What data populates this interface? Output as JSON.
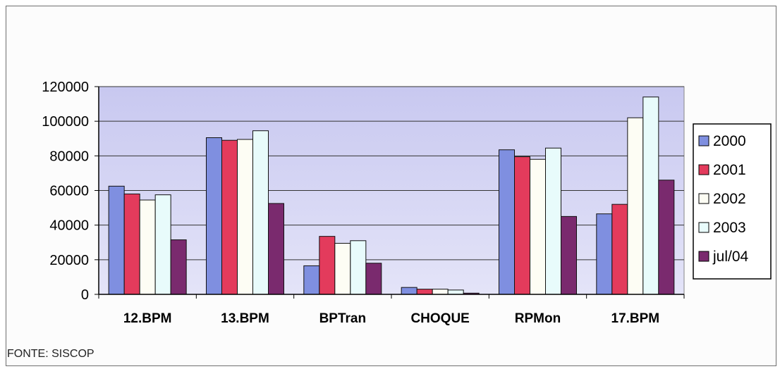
{
  "chart_data": {
    "type": "bar",
    "categories": [
      "12.BPM",
      "13.BPM",
      "BPTran",
      "CHOQUE",
      "RPMon",
      "17.BPM"
    ],
    "series": [
      {
        "name": "2000",
        "color": "#7f8fe0",
        "values": [
          62500,
          90500,
          16500,
          4000,
          83500,
          46500
        ]
      },
      {
        "name": "2001",
        "color": "#e33b5c",
        "values": [
          58000,
          89000,
          33500,
          3000,
          79500,
          52000
        ]
      },
      {
        "name": "2002",
        "color": "#fdfdf4",
        "values": [
          54500,
          89500,
          29500,
          3000,
          78000,
          102000
        ]
      },
      {
        "name": "2003",
        "color": "#e8fbfb",
        "values": [
          57500,
          94500,
          31000,
          2500,
          84500,
          114000
        ]
      },
      {
        "name": "jul/04",
        "color": "#7a2a6e",
        "values": [
          31500,
          52500,
          18000,
          700,
          45000,
          66000
        ]
      }
    ],
    "ylim": [
      0,
      120000
    ],
    "yticks": [
      "0",
      "20000",
      "40000",
      "60000",
      "80000",
      "100000",
      "120000"
    ],
    "grid": true,
    "legend_position": "right",
    "plot_background": "#c9c9f0"
  },
  "source_note": "FONTE: SISCOP"
}
